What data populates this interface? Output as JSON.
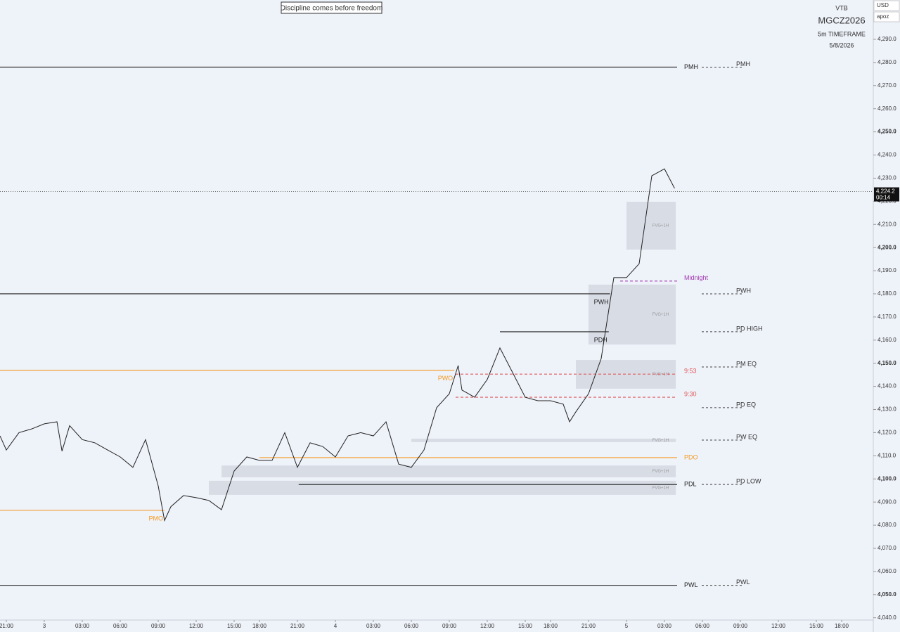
{
  "chart_data": {
    "type": "line",
    "title": "Discipline comes before freedom",
    "symbol": {
      "exchange": "VTB",
      "ticker": "MGCZ2026",
      "timeframe": "5m TIMEFRAME",
      "date": "5/8/2026"
    },
    "controls": {
      "currency": "USD",
      "account": "apoz"
    },
    "color": "#222222",
    "x": [
      -0.5,
      0,
      1,
      2,
      3,
      4,
      4.4,
      5,
      6,
      7,
      8,
      9,
      10,
      11,
      12,
      12.5,
      13,
      14,
      15,
      16,
      17,
      18,
      19,
      20,
      21,
      22,
      23,
      24,
      25,
      26,
      27,
      28,
      29,
      30,
      31,
      32,
      33,
      34,
      35,
      35.7,
      36,
      37,
      38,
      39,
      40,
      41,
      42,
      43,
      44,
      44.5,
      45,
      46,
      47,
      48,
      49,
      50,
      51,
      52,
      52.8
    ],
    "values": [
      4118.6,
      4112.5,
      4120,
      4121.6,
      4123.8,
      4124.7,
      4112,
      4123,
      4117,
      4115.6,
      4112.5,
      4109.5,
      4105,
      4117,
      4097,
      4082,
      4088,
      4092.8,
      4091.9,
      4090.7,
      4086.7,
      4103.4,
      4109.5,
      4108,
      4108,
      4120,
      4105,
      4115.6,
      4114,
      4109.5,
      4118.6,
      4120,
      4118.6,
      4124.7,
      4106.4,
      4105,
      4112.5,
      4130.8,
      4136.8,
      4149,
      4138.4,
      4135.3,
      4143,
      4156.6,
      4146,
      4135.3,
      4133.8,
      4133.8,
      4132.3,
      4124.7,
      4129,
      4136.8,
      4152,
      4187,
      4187,
      4193,
      4231,
      4234,
      4225.6
    ],
    "last_price": {
      "value": 4224.2,
      "label": "4,224.2"
    },
    "countdown": "00:14",
    "levels": [
      {
        "label": "PMH",
        "value": 4278,
        "start": -0.5,
        "end": 53,
        "color": "#222222",
        "style": "solid"
      },
      {
        "label": "PWH",
        "value": 4180,
        "start": -0.5,
        "end": 47.7,
        "color": "#222222",
        "style": "solid"
      },
      {
        "label": "PDH",
        "value": 4163.6,
        "start": 39,
        "end": 47.6,
        "color": "#222222",
        "style": "solid"
      },
      {
        "label": "PWO",
        "value": 4147,
        "start": -0.5,
        "end": 35.4,
        "color": "#f59a23",
        "style": "solid"
      },
      {
        "label": "PMO",
        "value": 4086.4,
        "start": -0.5,
        "end": 12.5,
        "color": "#f59a23",
        "style": "solid"
      },
      {
        "label": "PDO",
        "value": 4109.2,
        "start": 20,
        "end": 53,
        "color": "#f59a23",
        "style": "solid"
      },
      {
        "label": "PDL",
        "value": 4097.6,
        "start": 23.1,
        "end": 53,
        "color": "#222222",
        "style": "solid"
      },
      {
        "label": "PWL",
        "value": 4054,
        "start": -0.5,
        "end": 53,
        "color": "#222222",
        "style": "solid"
      },
      {
        "label": "Midnight",
        "value": 4185.5,
        "start": 48.5,
        "end": 53,
        "color": "#a23ab0",
        "style": "dashed"
      },
      {
        "label": "9:53",
        "value": 4145.3,
        "start": 35.5,
        "end": 53,
        "color": "#e05a5a",
        "style": "dashed"
      },
      {
        "label": "9:30",
        "value": 4135.3,
        "start": 35.5,
        "end": 53,
        "color": "#e05a5a",
        "style": "dashed"
      }
    ],
    "projections": [
      {
        "label": "PMH",
        "value": 4278
      },
      {
        "label": "PWH",
        "value": 4180
      },
      {
        "label": "PD HIGH",
        "value": 4163.6
      },
      {
        "label": "PM EQ",
        "value": 4148.4
      },
      {
        "label": "PD EQ",
        "value": 4130.8
      },
      {
        "label": "PW EQ",
        "value": 4116.8
      },
      {
        "label": "PD LOW",
        "value": 4097.6
      },
      {
        "label": "PWL",
        "value": 4054
      }
    ],
    "zones": [
      {
        "label": "FVG+1H",
        "top": 4219.8,
        "bottom": 4199.1,
        "start": 49,
        "end": 52.9
      },
      {
        "label": "FVG+1H",
        "top": 4184,
        "bottom": 4158.1,
        "start": 46,
        "end": 52.9
      },
      {
        "label": "FVG+1H",
        "top": 4151.4,
        "bottom": 4139,
        "start": 45,
        "end": 52.9
      },
      {
        "label": "FVG+1H",
        "top": 4117.4,
        "bottom": 4115.9,
        "start": 32,
        "end": 52.9
      },
      {
        "label": "FVG+1H",
        "top": 4105.8,
        "bottom": 4100.7,
        "start": 17,
        "end": 52.9
      },
      {
        "label": "FVG+1H",
        "top": 4099.2,
        "bottom": 4093.1,
        "start": 16,
        "end": 52.9
      }
    ],
    "xlim": [
      -0.5,
      68.5
    ],
    "xticks": [
      {
        "value": 0,
        "label": "21:00"
      },
      3,
      {
        "value": 6,
        "label": "03:00"
      },
      {
        "value": 9,
        "label": "06:00"
      },
      {
        "value": 12,
        "label": "09:00"
      },
      {
        "value": 15,
        "label": "12:00"
      },
      {
        "value": 18,
        "label": "15:00"
      },
      {
        "value": 20,
        "label": "18:00"
      },
      {
        "value": 23,
        "label": "21:00"
      },
      {
        "value": 26,
        "label": "4"
      },
      {
        "value": 29,
        "label": "03:00"
      },
      {
        "value": 32,
        "label": "06:00"
      },
      {
        "value": 35,
        "label": "09:00"
      },
      {
        "value": 38,
        "label": "12:00"
      },
      {
        "value": 41,
        "label": "15:00"
      },
      {
        "value": 43,
        "label": "18:00"
      },
      {
        "value": 46,
        "label": "21:00"
      },
      {
        "value": 49,
        "label": "5"
      },
      {
        "value": 52,
        "label": "03:00"
      },
      {
        "value": 55,
        "label": "06:00"
      },
      {
        "value": 58,
        "label": "09:00"
      },
      {
        "value": 61,
        "label": "12:00"
      },
      {
        "value": 64,
        "label": "15:00"
      },
      {
        "value": 66,
        "label": "18:00"
      }
    ],
    "ylim": [
      4039,
      4307
    ],
    "yticks": [
      {
        "value": 4290,
        "label": "4,290.0"
      },
      {
        "value": 4280,
        "label": "4,280.0"
      },
      {
        "value": 4270,
        "label": "4,270.0"
      },
      {
        "value": 4260,
        "label": "4,260.0"
      },
      {
        "value": 4250,
        "label": "4,250.0"
      },
      {
        "value": 4240,
        "label": "4,240.0"
      },
      {
        "value": 4230,
        "label": "4,230.0"
      },
      {
        "value": 4220,
        "label": "4,220.0"
      },
      {
        "value": 4210,
        "label": "4,210.0"
      },
      {
        "value": 4200,
        "label": "4,200.0"
      },
      {
        "value": 4190,
        "label": "4,190.0"
      },
      {
        "value": 4180,
        "label": "4,180.0"
      },
      {
        "value": 4170,
        "label": "4,170.0"
      },
      {
        "value": 4160,
        "label": "4,160.0"
      },
      {
        "value": 4150,
        "label": "4,150.0"
      },
      {
        "value": 4140,
        "label": "4,140.0"
      },
      {
        "value": 4130,
        "label": "4,130.0"
      },
      {
        "value": 4120,
        "label": "4,120.0"
      },
      {
        "value": 4110,
        "label": "4,110.0"
      },
      {
        "value": 4100,
        "label": "4,100.0"
      },
      {
        "value": 4090,
        "label": "4,090.0"
      },
      {
        "value": 4080,
        "label": "4,080.0"
      },
      {
        "value": 4070,
        "label": "4,070.0"
      },
      {
        "value": 4060,
        "label": "4,060.0"
      },
      {
        "value": 4050,
        "label": "4,050.0"
      },
      {
        "value": 4040,
        "label": "4,040.0"
      }
    ]
  }
}
